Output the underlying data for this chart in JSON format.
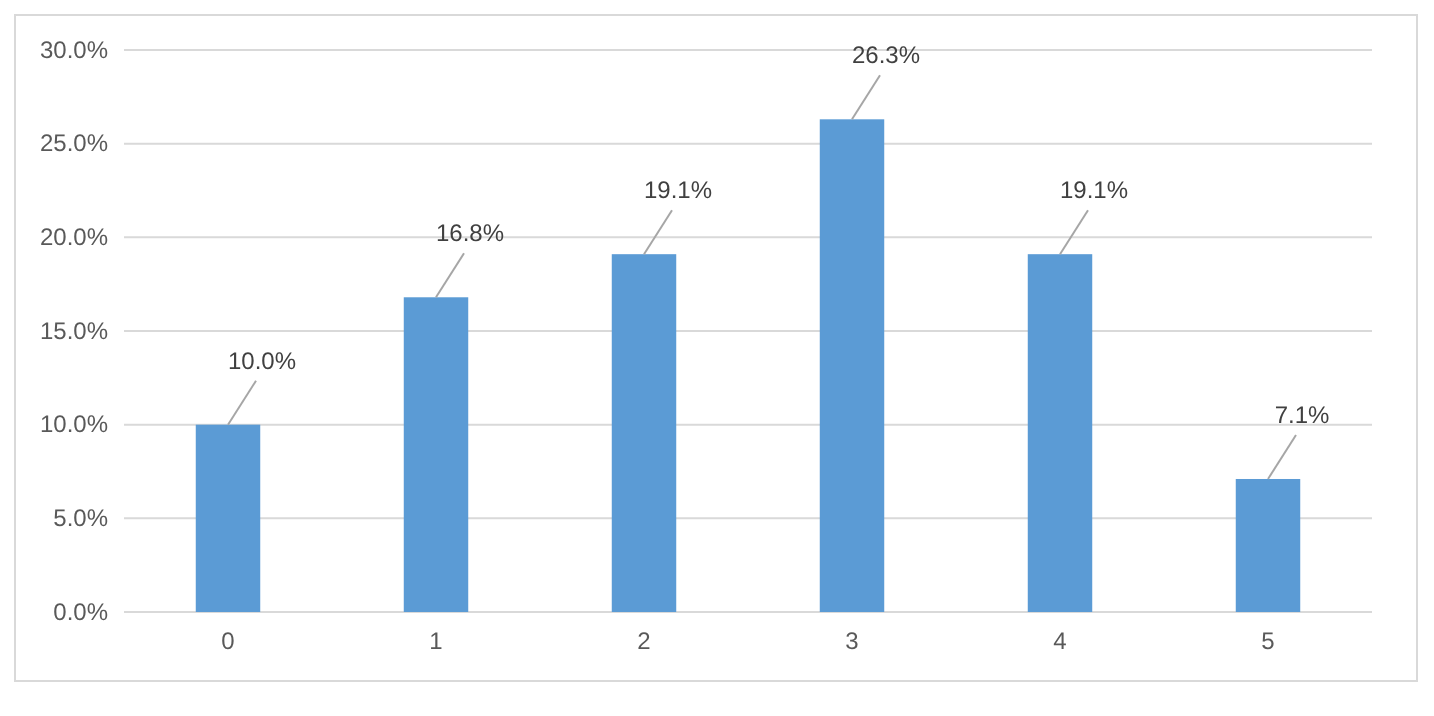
{
  "chart_data": {
    "type": "bar",
    "categories": [
      "0",
      "1",
      "2",
      "3",
      "4",
      "5"
    ],
    "values": [
      10.0,
      16.8,
      19.1,
      26.3,
      19.1,
      7.1
    ],
    "value_labels": [
      "10.0%",
      "16.8%",
      "19.1%",
      "26.3%",
      "19.1%",
      "7.1%"
    ],
    "color": "#5b9bd5",
    "ylim": [
      0,
      30
    ],
    "yticks": [
      {
        "value": 0,
        "label": "0.0%"
      },
      {
        "value": 5,
        "label": "5.0%"
      },
      {
        "value": 10,
        "label": "10.0%"
      },
      {
        "value": 15,
        "label": "15.0%"
      },
      {
        "value": 20,
        "label": "20.0%"
      },
      {
        "value": 25,
        "label": "25.0%"
      },
      {
        "value": 30,
        "label": "30.0%"
      }
    ],
    "grid": "y"
  }
}
